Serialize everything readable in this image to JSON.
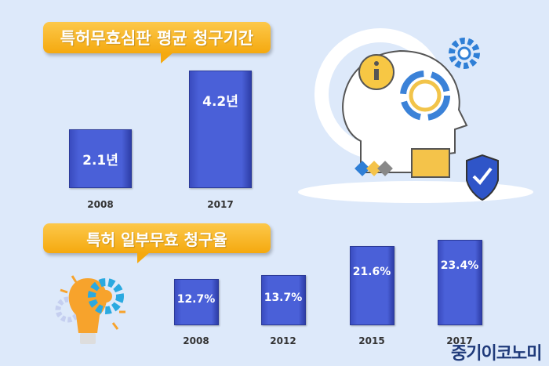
{
  "chart_data": [
    {
      "type": "bar",
      "title": "특허무효심판 평균 청구기간",
      "categories": [
        "2008",
        "2017"
      ],
      "values": [
        2.1,
        4.2
      ],
      "data_labels": [
        "2.1년",
        "4.2년"
      ],
      "ylim": [
        0,
        4.2
      ],
      "color": "#4a60d8"
    },
    {
      "type": "bar",
      "title": "특허 일부무효 청구율",
      "categories": [
        "2008",
        "2012",
        "2015",
        "2017"
      ],
      "values": [
        12.7,
        13.7,
        21.6,
        23.4
      ],
      "data_labels": [
        "12.7%",
        "13.7%",
        "21.6%",
        "23.4%"
      ],
      "ylim": [
        0,
        23.4
      ],
      "color": "#4a60d8"
    }
  ],
  "brand": "중기이코노미",
  "icons": [
    "head-circuit-icon",
    "info-icon",
    "gear-icon",
    "folder-icon",
    "shield-check-icon",
    "lightbulb-gear-icon"
  ]
}
